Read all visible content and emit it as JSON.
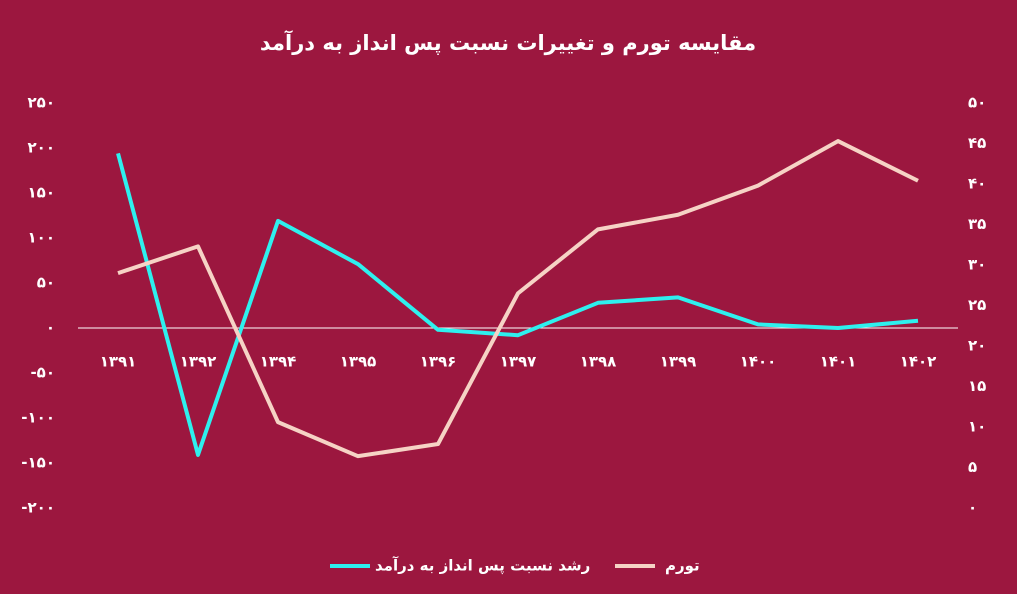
{
  "chart_data": {
    "type": "line",
    "title": "مقایسه تورم و تغییرات نسبت پس انداز به درآمد",
    "categories": [
      "۱۳۹۱",
      "۱۳۹۲",
      "۱۳۹۴",
      "۱۳۹۵",
      "۱۳۹۶",
      "۱۳۹۷",
      "۱۳۹۸",
      "۱۳۹۹",
      "۱۴۰۰",
      "۱۴۰۱",
      "۱۴۰۲"
    ],
    "series": [
      {
        "name": "رشد نسبت پس انداز به درآمد",
        "color": "#2ef0ee",
        "values": [
          194,
          -141,
          119,
          71,
          -2,
          -8,
          28,
          34,
          4,
          0,
          8
        ]
      },
      {
        "name": "تورم",
        "color": "#f6d3c5",
        "axis": "y2",
        "values": [
          29,
          32.3,
          10.6,
          6.4,
          7.9,
          26.5,
          34.4,
          36.2,
          39.8,
          45.3,
          40.4
        ]
      }
    ],
    "ylim": [
      -200,
      250
    ],
    "yticks": [
      {
        "value": 250,
        "label": "۲۵۰"
      },
      {
        "value": 200,
        "label": "۲۰۰"
      },
      {
        "value": 150,
        "label": "۱۵۰"
      },
      {
        "value": 100,
        "label": "۱۰۰"
      },
      {
        "value": 50,
        "label": "۵۰"
      },
      {
        "value": 0,
        "label": "۰"
      },
      {
        "value": -50,
        "label": "-۵۰"
      },
      {
        "value": -100,
        "label": "-۱۰۰"
      },
      {
        "value": -150,
        "label": "-۱۵۰"
      },
      {
        "value": -200,
        "label": "-۲۰۰"
      }
    ],
    "y2lim": [
      0,
      50
    ],
    "y2ticks": [
      {
        "value": 50,
        "label": "۵۰"
      },
      {
        "value": 45,
        "label": "۴۵"
      },
      {
        "value": 40,
        "label": "۴۰"
      },
      {
        "value": 35,
        "label": "۳۵"
      },
      {
        "value": 30,
        "label": "۳۰"
      },
      {
        "value": 25,
        "label": "۲۵"
      },
      {
        "value": 20,
        "label": "۲۰"
      },
      {
        "value": 15,
        "label": "۱۵"
      },
      {
        "value": 10,
        "label": "۱۰"
      },
      {
        "value": 5,
        "label": "۵"
      },
      {
        "value": 0,
        "label": "۰"
      }
    ],
    "grid": false,
    "legend": "bottom"
  }
}
